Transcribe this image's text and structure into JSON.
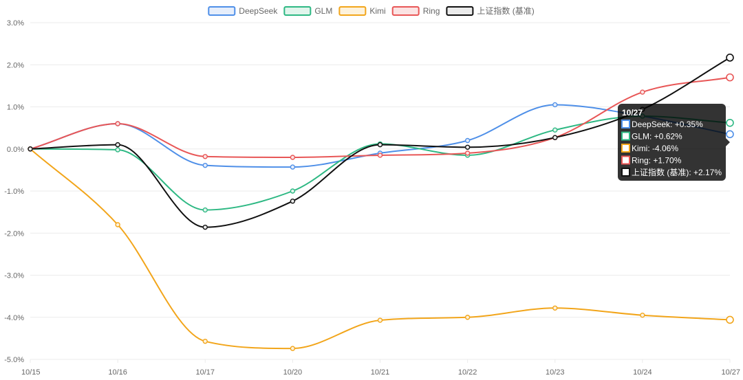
{
  "chart_data": {
    "type": "line",
    "categories": [
      "10/15",
      "10/16",
      "10/17",
      "10/20",
      "10/21",
      "10/22",
      "10/23",
      "10/24",
      "10/27"
    ],
    "ylim": [
      -5,
      3
    ],
    "yticks": [
      3,
      2,
      1,
      0,
      -1,
      -2,
      -3,
      -4,
      -5
    ],
    "ytick_labels": [
      "3.0%",
      "2.0%",
      "1.0%",
      "0.0%",
      "-1.0%",
      "-2.0%",
      "-3.0%",
      "-4.0%",
      "-5.0%"
    ],
    "grid": true,
    "legend_position": "top-center",
    "series": [
      {
        "name": "DeepSeek",
        "color": "#4e8fe8",
        "fill": "#e6eefb",
        "values": [
          0,
          0.6,
          -0.39,
          -0.43,
          -0.1,
          0.2,
          1.05,
          0.78,
          0.35
        ]
      },
      {
        "name": "GLM",
        "color": "#2db883",
        "fill": "#e1f5ec",
        "values": [
          0,
          -0.02,
          -1.45,
          -1.0,
          0.12,
          -0.15,
          0.45,
          0.78,
          0.62
        ]
      },
      {
        "name": "Kimi",
        "color": "#f2a51a",
        "fill": "#fdf2dc",
        "values": [
          0,
          -1.8,
          -4.57,
          -4.74,
          -4.07,
          -4.0,
          -3.78,
          -3.95,
          -4.06
        ]
      },
      {
        "name": "Ring",
        "color": "#e85656",
        "fill": "#fbe3e3",
        "values": [
          0,
          0.6,
          -0.18,
          -0.2,
          -0.15,
          -0.1,
          0.27,
          1.35,
          1.7
        ]
      },
      {
        "name": "上证指数 (基准)",
        "color": "#111111",
        "fill": "#ebebeb",
        "values": [
          0,
          0.1,
          -1.86,
          -1.24,
          0.1,
          0.04,
          0.27,
          0.94,
          2.17
        ]
      }
    ],
    "tooltip": {
      "title": "10/27",
      "lines": [
        "DeepSeek: +0.35%",
        "GLM: +0.62%",
        "Kimi: -4.06%",
        "Ring: +1.70%",
        "上证指数 (基准): +2.17%"
      ]
    }
  }
}
